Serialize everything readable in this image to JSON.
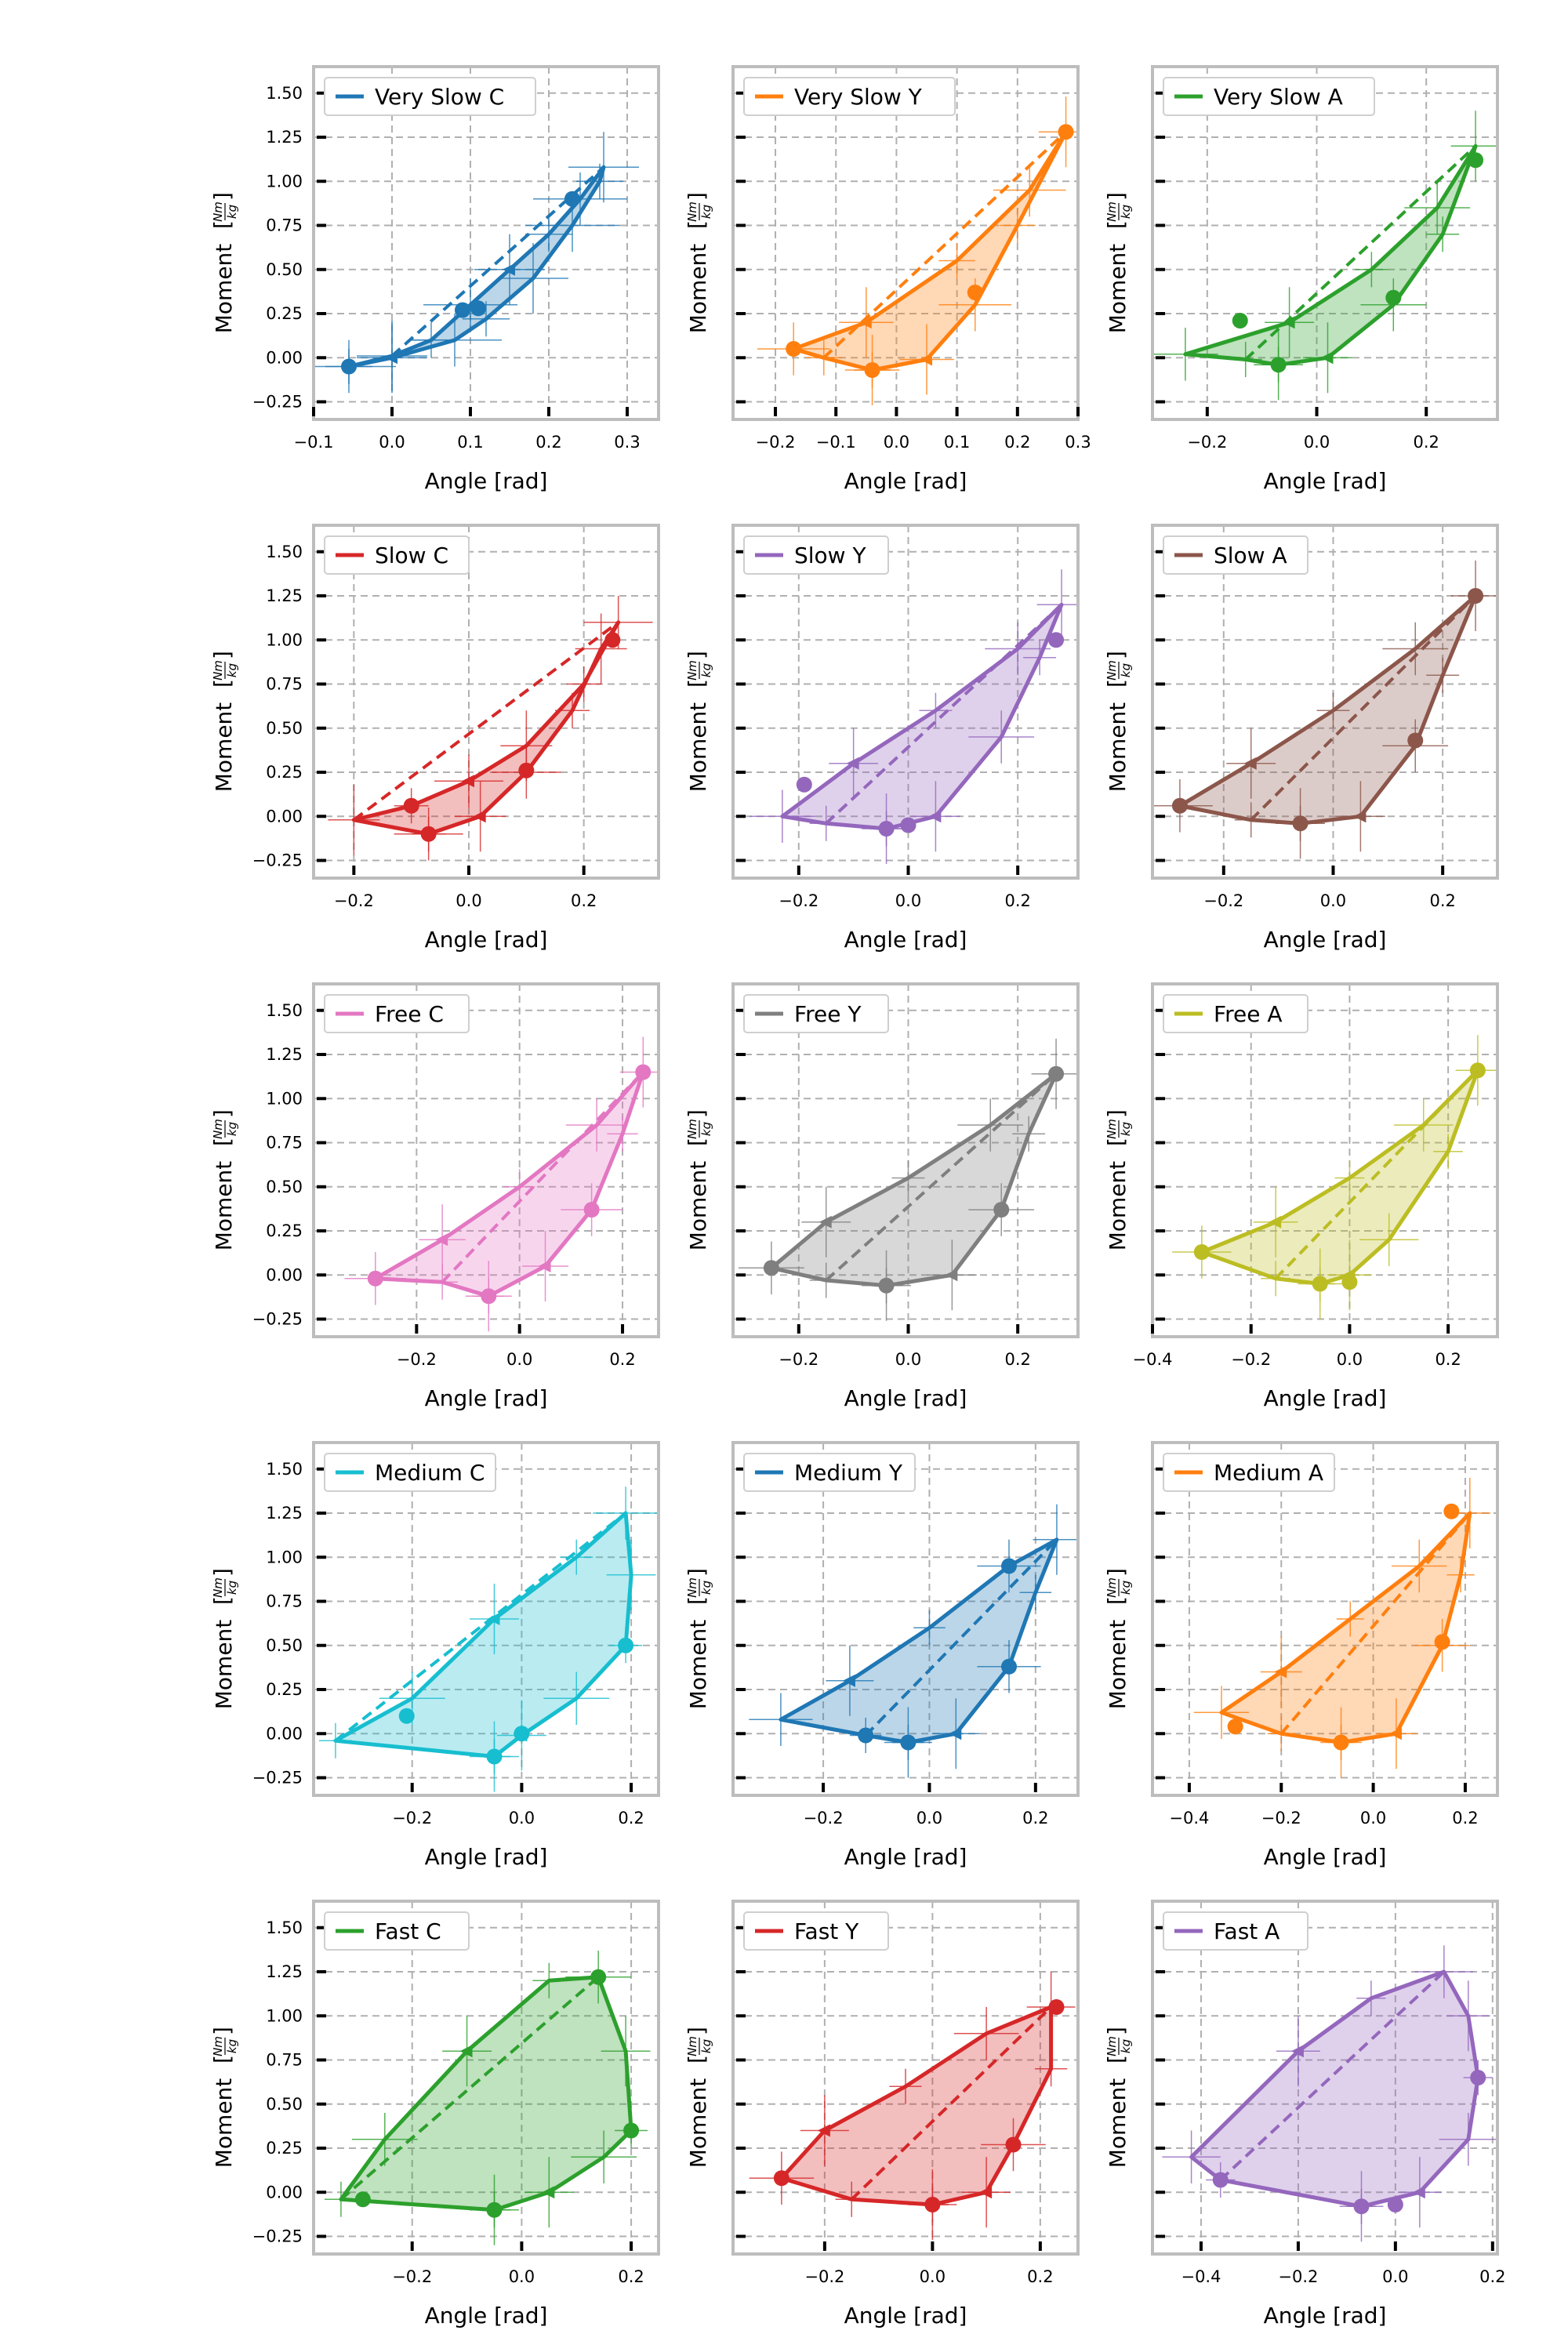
{
  "figure": {
    "ylabel": "Moment",
    "ylabel_unit_num": "Nm",
    "ylabel_unit_den": "kg",
    "xlabel": "Angle [rad]"
  },
  "chart_data": [
    {
      "type": "line",
      "title": "",
      "xlabel": "Angle [rad]",
      "ylabel": "Moment [Nm/kg]",
      "color": "#1f77b4",
      "xlim": [
        -0.1,
        0.34
      ],
      "xticks": [
        -0.1,
        0.0,
        0.1,
        0.2,
        0.3
      ],
      "ylim": [
        -0.35,
        1.65
      ],
      "yticks": [
        -0.25,
        0.0,
        0.25,
        0.5,
        0.75,
        1.0,
        1.25,
        1.5
      ],
      "grid": true,
      "legend_position": "top-left",
      "series": [
        {
          "name": "Very Slow C",
          "x": [
            -0.055,
            0.0,
            0.08,
            0.12,
            0.18,
            0.23,
            0.265,
            0.27,
            0.24,
            0.2,
            0.15,
            0.1,
            0.05,
            0.0,
            -0.055
          ],
          "y": [
            -0.05,
            0.0,
            0.1,
            0.22,
            0.45,
            0.75,
            1.0,
            1.08,
            0.9,
            0.7,
            0.5,
            0.3,
            0.1,
            0.01,
            -0.05
          ]
        }
      ],
      "markers": {
        "x": [
          -0.055,
          0.09,
          0.11,
          0.23
        ],
        "y": [
          -0.05,
          0.27,
          0.28,
          0.9
        ]
      }
    },
    {
      "type": "line",
      "title": "",
      "xlabel": "Angle [rad]",
      "ylabel": "Moment [Nm/kg]",
      "color": "#ff7f0e",
      "xlim": [
        -0.27,
        0.3
      ],
      "xticks": [
        -0.2,
        -0.1,
        0.0,
        0.1,
        0.2,
        0.3
      ],
      "ylim": [
        -0.35,
        1.65
      ],
      "yticks": [
        -0.25,
        0.0,
        0.25,
        0.5,
        0.75,
        1.0,
        1.25,
        1.5
      ],
      "grid": true,
      "legend_position": "top-left",
      "series": [
        {
          "name": "Very Slow Y",
          "x": [
            -0.04,
            0.05,
            0.13,
            0.2,
            0.28,
            0.22,
            0.1,
            -0.05,
            -0.17,
            -0.12,
            -0.04
          ],
          "y": [
            -0.07,
            -0.01,
            0.3,
            0.75,
            1.28,
            0.95,
            0.55,
            0.2,
            0.05,
            0.0,
            -0.07
          ]
        }
      ],
      "markers": {
        "x": [
          -0.04,
          0.13,
          0.28,
          -0.17
        ],
        "y": [
          -0.07,
          0.37,
          1.28,
          0.05
        ]
      }
    },
    {
      "type": "line",
      "title": "",
      "xlabel": "Angle [rad]",
      "ylabel": "Moment [Nm/kg]",
      "color": "#2ca02c",
      "xlim": [
        -0.3,
        0.33
      ],
      "xticks": [
        -0.2,
        0.0,
        0.2
      ],
      "ylim": [
        -0.35,
        1.65
      ],
      "yticks": [
        -0.25,
        0.0,
        0.25,
        0.5,
        0.75,
        1.0,
        1.25,
        1.5
      ],
      "grid": true,
      "legend_position": "top-left",
      "series": [
        {
          "name": "Very Slow A",
          "x": [
            -0.07,
            0.02,
            0.14,
            0.23,
            0.29,
            0.22,
            0.1,
            -0.05,
            -0.24,
            -0.13,
            -0.07
          ],
          "y": [
            -0.04,
            0.0,
            0.3,
            0.7,
            1.2,
            0.85,
            0.5,
            0.2,
            0.02,
            -0.01,
            -0.04
          ]
        }
      ],
      "markers": {
        "x": [
          -0.07,
          0.14,
          0.29,
          -0.14
        ],
        "y": [
          -0.04,
          0.34,
          1.12,
          0.21
        ]
      }
    },
    {
      "type": "line",
      "title": "",
      "xlabel": "Angle [rad]",
      "ylabel": "Moment [Nm/kg]",
      "color": "#d62728",
      "xlim": [
        -0.27,
        0.33
      ],
      "xticks": [
        -0.2,
        0.0,
        0.2
      ],
      "ylim": [
        -0.35,
        1.65
      ],
      "yticks": [
        -0.25,
        0.0,
        0.25,
        0.5,
        0.75,
        1.0,
        1.25,
        1.5
      ],
      "grid": true,
      "legend_position": "top-left",
      "series": [
        {
          "name": "Slow C",
          "x": [
            -0.07,
            0.02,
            0.1,
            0.18,
            0.23,
            0.26,
            0.2,
            0.1,
            0.0,
            -0.1,
            -0.2,
            -0.07
          ],
          "y": [
            -0.1,
            0.0,
            0.25,
            0.6,
            0.95,
            1.1,
            0.75,
            0.4,
            0.2,
            0.06,
            -0.02,
            -0.1
          ]
        }
      ],
      "markers": {
        "x": [
          -0.07,
          0.1,
          0.25,
          -0.1
        ],
        "y": [
          -0.1,
          0.26,
          1.0,
          0.06
        ]
      }
    },
    {
      "type": "line",
      "title": "",
      "xlabel": "Angle [rad]",
      "ylabel": "Moment [Nm/kg]",
      "color": "#9467bd",
      "xlim": [
        -0.32,
        0.31
      ],
      "xticks": [
        -0.2,
        0.0,
        0.2
      ],
      "ylim": [
        -0.35,
        1.65
      ],
      "yticks": [
        -0.25,
        0.0,
        0.25,
        0.5,
        0.75,
        1.0,
        1.25,
        1.5
      ],
      "grid": true,
      "legend_position": "top-left",
      "series": [
        {
          "name": "Slow Y",
          "x": [
            -0.04,
            0.05,
            0.17,
            0.24,
            0.28,
            0.2,
            0.05,
            -0.1,
            -0.23,
            -0.15,
            -0.04
          ],
          "y": [
            -0.07,
            0.0,
            0.45,
            0.9,
            1.2,
            0.95,
            0.6,
            0.3,
            0.0,
            -0.04,
            -0.07
          ]
        }
      ],
      "markers": {
        "x": [
          -0.04,
          0.0,
          0.27,
          -0.19
        ],
        "y": [
          -0.07,
          -0.05,
          1.0,
          0.18
        ]
      }
    },
    {
      "type": "line",
      "title": "",
      "xlabel": "Angle [rad]",
      "ylabel": "Moment [Nm/kg]",
      "color": "#8c564b",
      "xlim": [
        -0.33,
        0.3
      ],
      "xticks": [
        -0.2,
        0.0,
        0.2
      ],
      "ylim": [
        -0.35,
        1.65
      ],
      "yticks": [
        -0.25,
        0.0,
        0.25,
        0.5,
        0.75,
        1.0,
        1.25,
        1.5
      ],
      "grid": true,
      "legend_position": "top-left",
      "series": [
        {
          "name": "Slow A",
          "x": [
            -0.06,
            0.05,
            0.15,
            0.2,
            0.26,
            0.15,
            0.0,
            -0.15,
            -0.28,
            -0.15,
            -0.06
          ],
          "y": [
            -0.04,
            0.0,
            0.4,
            0.8,
            1.25,
            0.95,
            0.6,
            0.3,
            0.06,
            -0.02,
            -0.04
          ]
        }
      ],
      "markers": {
        "x": [
          -0.06,
          0.15,
          0.26,
          -0.28
        ],
        "y": [
          -0.04,
          0.43,
          1.25,
          0.06
        ]
      }
    },
    {
      "type": "line",
      "title": "",
      "xlabel": "Angle [rad]",
      "ylabel": "Moment [Nm/kg]",
      "color": "#e377c2",
      "xlim": [
        -0.4,
        0.27
      ],
      "xticks": [
        -0.2,
        0.0,
        0.2
      ],
      "ylim": [
        -0.35,
        1.65
      ],
      "yticks": [
        -0.25,
        0.0,
        0.25,
        0.5,
        0.75,
        1.0,
        1.25,
        1.5
      ],
      "grid": true,
      "legend_position": "top-left",
      "series": [
        {
          "name": "Free C",
          "x": [
            -0.06,
            0.05,
            0.14,
            0.2,
            0.24,
            0.15,
            0.0,
            -0.15,
            -0.28,
            -0.15,
            -0.06
          ],
          "y": [
            -0.12,
            0.05,
            0.37,
            0.8,
            1.15,
            0.85,
            0.5,
            0.2,
            -0.02,
            -0.04,
            -0.12
          ]
        }
      ],
      "markers": {
        "x": [
          -0.06,
          0.14,
          0.24,
          -0.28
        ],
        "y": [
          -0.12,
          0.37,
          1.15,
          -0.02
        ]
      }
    },
    {
      "type": "line",
      "title": "",
      "xlabel": "Angle [rad]",
      "ylabel": "Moment [Nm/kg]",
      "color": "#7f7f7f",
      "xlim": [
        -0.32,
        0.31
      ],
      "xticks": [
        -0.2,
        0.0,
        0.2
      ],
      "ylim": [
        -0.35,
        1.65
      ],
      "yticks": [
        -0.25,
        0.0,
        0.25,
        0.5,
        0.75,
        1.0,
        1.25,
        1.5
      ],
      "grid": true,
      "legend_position": "top-left",
      "series": [
        {
          "name": "Free Y",
          "x": [
            -0.04,
            0.08,
            0.17,
            0.22,
            0.27,
            0.15,
            0.0,
            -0.15,
            -0.25,
            -0.15,
            -0.04
          ],
          "y": [
            -0.06,
            0.0,
            0.37,
            0.8,
            1.14,
            0.85,
            0.55,
            0.3,
            0.04,
            -0.03,
            -0.06
          ]
        }
      ],
      "markers": {
        "x": [
          -0.04,
          0.17,
          0.27,
          -0.25
        ],
        "y": [
          -0.06,
          0.37,
          1.14,
          0.04
        ]
      }
    },
    {
      "type": "line",
      "title": "",
      "xlabel": "Angle [rad]",
      "ylabel": "Moment [Nm/kg]",
      "color": "#bcbd22",
      "xlim": [
        -0.4,
        0.3
      ],
      "xticks": [
        -0.4,
        -0.2,
        0.0,
        0.2
      ],
      "ylim": [
        -0.35,
        1.65
      ],
      "yticks": [
        -0.25,
        0.0,
        0.25,
        0.5,
        0.75,
        1.0,
        1.25,
        1.5
      ],
      "grid": true,
      "legend_position": "top-left",
      "series": [
        {
          "name": "Free A",
          "x": [
            -0.06,
            0.0,
            0.08,
            0.2,
            0.26,
            0.15,
            0.0,
            -0.15,
            -0.3,
            -0.15,
            -0.06
          ],
          "y": [
            -0.05,
            0.0,
            0.2,
            0.7,
            1.16,
            0.85,
            0.55,
            0.3,
            0.13,
            -0.02,
            -0.05
          ]
        }
      ],
      "markers": {
        "x": [
          -0.06,
          0.0,
          0.26,
          -0.3
        ],
        "y": [
          -0.05,
          -0.04,
          1.16,
          0.13
        ]
      }
    },
    {
      "type": "line",
      "title": "",
      "xlabel": "Angle [rad]",
      "ylabel": "Moment [Nm/kg]",
      "color": "#17becf",
      "xlim": [
        -0.38,
        0.25
      ],
      "xticks": [
        -0.2,
        0.0,
        0.2
      ],
      "ylim": [
        -0.35,
        1.65
      ],
      "yticks": [
        -0.25,
        0.0,
        0.25,
        0.5,
        0.75,
        1.0,
        1.25,
        1.5
      ],
      "grid": true,
      "legend_position": "top-left",
      "series": [
        {
          "name": "Medium C",
          "x": [
            -0.05,
            0.0,
            0.1,
            0.19,
            0.2,
            0.19,
            0.1,
            -0.05,
            -0.2,
            -0.34,
            -0.05
          ],
          "y": [
            -0.13,
            -0.01,
            0.2,
            0.5,
            0.9,
            1.25,
            1.0,
            0.65,
            0.2,
            -0.04,
            -0.13
          ]
        }
      ],
      "markers": {
        "x": [
          -0.05,
          0.0,
          0.19,
          -0.21
        ],
        "y": [
          -0.13,
          0.0,
          0.5,
          0.1
        ]
      }
    },
    {
      "type": "line",
      "title": "",
      "xlabel": "Angle [rad]",
      "ylabel": "Moment [Nm/kg]",
      "color": "#1f77b4",
      "xlim": [
        -0.37,
        0.28
      ],
      "xticks": [
        -0.2,
        0.0,
        0.2
      ],
      "ylim": [
        -0.35,
        1.65
      ],
      "yticks": [
        -0.25,
        0.0,
        0.25,
        0.5,
        0.75,
        1.0,
        1.25,
        1.5
      ],
      "grid": true,
      "legend_position": "top-left",
      "series": [
        {
          "name": "Medium Y",
          "x": [
            -0.04,
            0.05,
            0.15,
            0.2,
            0.24,
            0.15,
            0.0,
            -0.15,
            -0.28,
            -0.12,
            -0.04
          ],
          "y": [
            -0.05,
            0.0,
            0.38,
            0.8,
            1.1,
            0.95,
            0.6,
            0.3,
            0.08,
            -0.01,
            -0.05
          ]
        }
      ],
      "markers": {
        "x": [
          -0.04,
          0.15,
          0.15,
          -0.12
        ],
        "y": [
          -0.05,
          0.38,
          0.95,
          -0.01
        ]
      }
    },
    {
      "type": "line",
      "title": "",
      "xlabel": "Angle [rad]",
      "ylabel": "Moment [Nm/kg]",
      "color": "#ff7f0e",
      "xlim": [
        -0.48,
        0.27
      ],
      "xticks": [
        -0.4,
        -0.2,
        0.0,
        0.2
      ],
      "ylim": [
        -0.35,
        1.65
      ],
      "yticks": [
        -0.25,
        0.0,
        0.25,
        0.5,
        0.75,
        1.0,
        1.25,
        1.5
      ],
      "grid": true,
      "legend_position": "top-left",
      "series": [
        {
          "name": "Medium A",
          "x": [
            -0.07,
            0.05,
            0.15,
            0.19,
            0.21,
            0.1,
            -0.05,
            -0.2,
            -0.33,
            -0.2,
            -0.07
          ],
          "y": [
            -0.05,
            0.0,
            0.5,
            0.9,
            1.25,
            0.95,
            0.65,
            0.35,
            0.12,
            0.0,
            -0.05
          ]
        }
      ],
      "markers": {
        "x": [
          -0.07,
          0.15,
          0.17,
          -0.3
        ],
        "y": [
          -0.05,
          0.52,
          1.26,
          0.04
        ]
      }
    },
    {
      "type": "line",
      "title": "",
      "xlabel": "Angle [rad]",
      "ylabel": "Moment [Nm/kg]",
      "color": "#2ca02c",
      "xlim": [
        -0.38,
        0.25
      ],
      "xticks": [
        -0.2,
        0.0,
        0.2
      ],
      "ylim": [
        -0.35,
        1.65
      ],
      "yticks": [
        -0.25,
        0.0,
        0.25,
        0.5,
        0.75,
        1.0,
        1.25,
        1.5
      ],
      "grid": true,
      "legend_position": "top-left",
      "series": [
        {
          "name": "Fast C",
          "x": [
            -0.05,
            0.05,
            0.15,
            0.2,
            0.19,
            0.14,
            0.05,
            -0.1,
            -0.25,
            -0.33,
            -0.05
          ],
          "y": [
            -0.1,
            0.0,
            0.2,
            0.35,
            0.8,
            1.22,
            1.2,
            0.8,
            0.3,
            -0.04,
            -0.1
          ]
        }
      ],
      "markers": {
        "x": [
          -0.05,
          0.2,
          0.14,
          -0.29
        ],
        "y": [
          -0.1,
          0.35,
          1.22,
          -0.04
        ]
      }
    },
    {
      "type": "line",
      "title": "",
      "xlabel": "Angle [rad]",
      "ylabel": "Moment [Nm/kg]",
      "color": "#d62728",
      "xlim": [
        -0.37,
        0.27
      ],
      "xticks": [
        -0.2,
        0.0,
        0.2
      ],
      "ylim": [
        -0.35,
        1.65
      ],
      "yticks": [
        -0.25,
        0.0,
        0.25,
        0.5,
        0.75,
        1.0,
        1.25,
        1.5
      ],
      "grid": true,
      "legend_position": "top-left",
      "series": [
        {
          "name": "Fast Y",
          "x": [
            0.0,
            0.1,
            0.15,
            0.22,
            0.22,
            0.1,
            -0.05,
            -0.2,
            -0.28,
            -0.15,
            0.0
          ],
          "y": [
            -0.07,
            0.0,
            0.27,
            0.7,
            1.05,
            0.9,
            0.6,
            0.35,
            0.08,
            -0.04,
            -0.07
          ]
        }
      ],
      "markers": {
        "x": [
          0.0,
          0.15,
          0.23,
          -0.28
        ],
        "y": [
          -0.07,
          0.27,
          1.05,
          0.08
        ]
      }
    },
    {
      "type": "line",
      "title": "",
      "xlabel": "Angle [rad]",
      "ylabel": "Moment [Nm/kg]",
      "color": "#9467bd",
      "xlim": [
        -0.5,
        0.21
      ],
      "xticks": [
        -0.4,
        -0.2,
        0.0,
        0.2
      ],
      "ylim": [
        -0.35,
        1.65
      ],
      "yticks": [
        -0.25,
        0.0,
        0.25,
        0.5,
        0.75,
        1.0,
        1.25,
        1.5
      ],
      "grid": true,
      "legend_position": "top-left",
      "series": [
        {
          "name": "Fast A",
          "x": [
            -0.07,
            0.05,
            0.15,
            0.17,
            0.15,
            0.1,
            -0.05,
            -0.2,
            -0.42,
            -0.36,
            -0.07
          ],
          "y": [
            -0.08,
            0.0,
            0.3,
            0.65,
            1.0,
            1.25,
            1.1,
            0.8,
            0.2,
            0.07,
            -0.08
          ]
        }
      ],
      "markers": {
        "x": [
          -0.07,
          0.0,
          0.17,
          -0.36
        ],
        "y": [
          -0.08,
          -0.07,
          0.65,
          0.07
        ]
      }
    }
  ]
}
